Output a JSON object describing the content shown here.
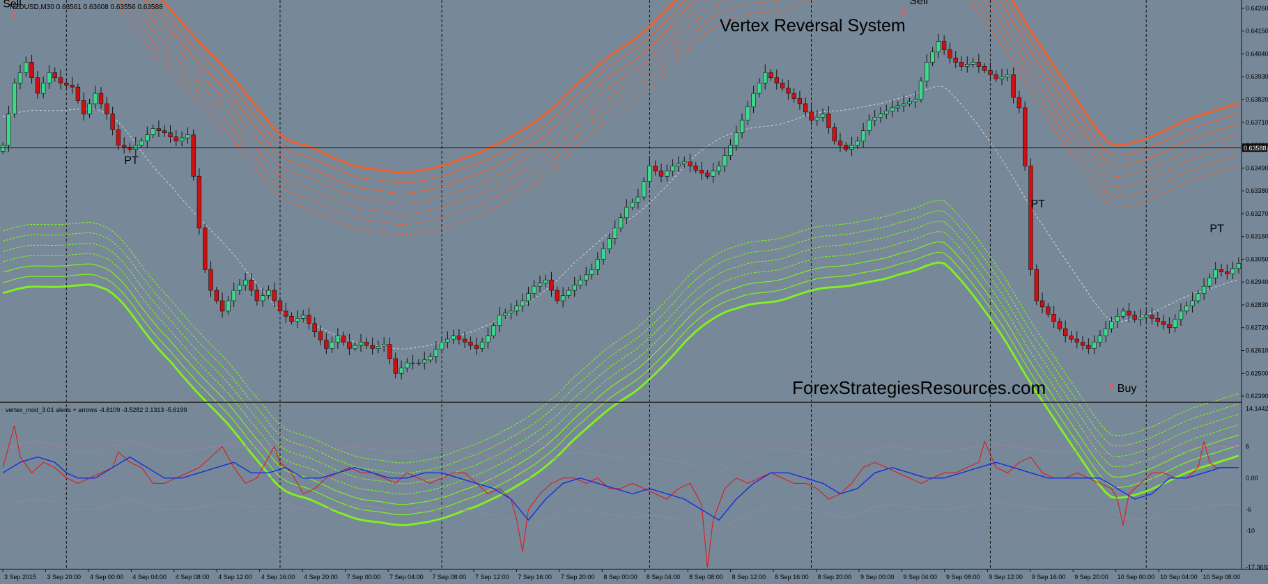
{
  "window": {
    "symbol_header": "NZDUSD,M30  0.63561 0.63608 0.63556 0.63588",
    "indicator_header": "vertex_mod_3.01 alerts + arrows -4.8109 -3.5282 2.1313 -5.6199"
  },
  "colors": {
    "background": "#778899",
    "bull_candle": "#3CD98A",
    "bear_candle": "#D01010",
    "upper_band": "#F0602A",
    "lower_band": "#80F020",
    "signal_red": "#E81010",
    "signal_blue": "#1030E0",
    "arrow": "#FF5050"
  },
  "chart_data": [
    {
      "type": "candlestick",
      "title": "Vertex Reversal System",
      "watermark": "ForexStrategiesResources.com",
      "price_axis_labels": [
        "0.64260",
        "0.64150",
        "0.64040",
        "0.63930",
        "0.63820",
        "0.63710",
        "0.63600",
        "0.63490",
        "0.63380",
        "0.63270",
        "0.63160",
        "0.63050",
        "0.62940",
        "0.62830",
        "0.62720",
        "0.62610",
        "0.62500",
        "0.62390"
      ],
      "current_price": "0.63588",
      "ylim": [
        0.6236,
        0.643
      ],
      "time_labels": [
        "3 Sep 2015",
        "3 Sep 20:00",
        "4 Sep 00:00",
        "4 Sep 04:00",
        "4 Sep 08:00",
        "4 Sep 12:00",
        "4 Sep 16:00",
        "4 Sep 20:00",
        "7 Sep 00:00",
        "7 Sep 04:00",
        "7 Sep 08:00",
        "7 Sep 12:00",
        "7 Sep 16:00",
        "7 Sep 20:00",
        "8 Sep 00:00",
        "8 Sep 04:00",
        "8 Sep 08:00",
        "8 Sep 12:00",
        "8 Sep 16:00",
        "8 Sep 20:00",
        "9 Sep 00:00",
        "9 Sep 04:00",
        "9 Sep 08:00",
        "9 Sep 12:00",
        "9 Sep 16:00",
        "9 Sep 20:00",
        "10 Sep 00:00",
        "10 Sep 04:00",
        "10 Sep 08:00"
      ],
      "close_path": [
        [
          0,
          0.636
        ],
        [
          2,
          0.639
        ],
        [
          4,
          0.64
        ],
        [
          6,
          0.6385
        ],
        [
          8,
          0.6395
        ],
        [
          10,
          0.639
        ],
        [
          12,
          0.6388
        ],
        [
          14,
          0.6375
        ],
        [
          16,
          0.6385
        ],
        [
          18,
          0.6375
        ],
        [
          20,
          0.636
        ],
        [
          22,
          0.6358
        ],
        [
          24,
          0.6362
        ],
        [
          26,
          0.6368
        ],
        [
          28,
          0.6366
        ],
        [
          30,
          0.6362
        ],
        [
          32,
          0.6365
        ],
        [
          33,
          0.6345
        ],
        [
          34,
          0.632
        ],
        [
          35,
          0.63
        ],
        [
          36,
          0.629
        ],
        [
          38,
          0.628
        ],
        [
          40,
          0.629
        ],
        [
          42,
          0.6295
        ],
        [
          44,
          0.6285
        ],
        [
          46,
          0.629
        ],
        [
          48,
          0.628
        ],
        [
          50,
          0.6275
        ],
        [
          52,
          0.6278
        ],
        [
          54,
          0.627
        ],
        [
          56,
          0.6262
        ],
        [
          58,
          0.6268
        ],
        [
          60,
          0.6262
        ],
        [
          62,
          0.6265
        ],
        [
          64,
          0.6262
        ],
        [
          66,
          0.6264
        ],
        [
          68,
          0.625
        ],
        [
          70,
          0.6255
        ],
        [
          72,
          0.6255
        ],
        [
          74,
          0.6258
        ],
        [
          76,
          0.6265
        ],
        [
          78,
          0.6268
        ],
        [
          80,
          0.6265
        ],
        [
          82,
          0.6262
        ],
        [
          84,
          0.6268
        ],
        [
          86,
          0.6278
        ],
        [
          88,
          0.628
        ],
        [
          90,
          0.6285
        ],
        [
          92,
          0.6292
        ],
        [
          94,
          0.6295
        ],
        [
          96,
          0.6285
        ],
        [
          98,
          0.629
        ],
        [
          100,
          0.6295
        ],
        [
          102,
          0.63
        ],
        [
          104,
          0.631
        ],
        [
          106,
          0.632
        ],
        [
          108,
          0.633
        ],
        [
          110,
          0.6335
        ],
        [
          112,
          0.635
        ],
        [
          114,
          0.6345
        ],
        [
          116,
          0.635
        ],
        [
          118,
          0.6352
        ],
        [
          120,
          0.6348
        ],
        [
          122,
          0.6345
        ],
        [
          124,
          0.635
        ],
        [
          126,
          0.636
        ],
        [
          128,
          0.6372
        ],
        [
          130,
          0.6385
        ],
        [
          132,
          0.6395
        ],
        [
          134,
          0.639
        ],
        [
          136,
          0.6385
        ],
        [
          138,
          0.638
        ],
        [
          140,
          0.6372
        ],
        [
          142,
          0.6375
        ],
        [
          144,
          0.6362
        ],
        [
          146,
          0.6358
        ],
        [
          148,
          0.6362
        ],
        [
          150,
          0.6372
        ],
        [
          152,
          0.6375
        ],
        [
          154,
          0.6378
        ],
        [
          156,
          0.638
        ],
        [
          158,
          0.6382
        ],
        [
          160,
          0.64
        ],
        [
          162,
          0.641
        ],
        [
          164,
          0.6402
        ],
        [
          166,
          0.6398
        ],
        [
          168,
          0.64
        ],
        [
          170,
          0.6396
        ],
        [
          172,
          0.6392
        ],
        [
          174,
          0.6394
        ],
        [
          175,
          0.6383
        ],
        [
          176,
          0.6378
        ],
        [
          177,
          0.635
        ],
        [
          178,
          0.63
        ],
        [
          179,
          0.6285
        ],
        [
          180,
          0.6282
        ],
        [
          182,
          0.6275
        ],
        [
          184,
          0.6268
        ],
        [
          186,
          0.6265
        ],
        [
          188,
          0.6262
        ],
        [
          190,
          0.6268
        ],
        [
          192,
          0.6275
        ],
        [
          194,
          0.628
        ],
        [
          196,
          0.6276
        ],
        [
          198,
          0.6278
        ],
        [
          200,
          0.6275
        ],
        [
          202,
          0.6272
        ],
        [
          204,
          0.628
        ],
        [
          206,
          0.6285
        ],
        [
          208,
          0.6292
        ],
        [
          210,
          0.63
        ],
        [
          212,
          0.6298
        ],
        [
          214,
          0.6303
        ]
      ],
      "labels": [
        {
          "text": "Sell",
          "index": 0,
          "price": 0.64265
        },
        {
          "text": "PT",
          "index": 21,
          "price": 0.6351
        },
        {
          "text": "Sell",
          "index": 157,
          "price": 0.6428
        },
        {
          "text": "PT",
          "index": 178,
          "price": 0.633
        },
        {
          "text": "PT",
          "index": 209,
          "price": 0.6318
        },
        {
          "text": "Buy",
          "index": 193,
          "price": 0.6241
        }
      ]
    },
    {
      "type": "line",
      "yaxis_labels": [
        "14.1442",
        "6",
        "0.00",
        "-6",
        "-10",
        "-17.3693"
      ],
      "ylim": [
        -17.3693,
        14.1442
      ],
      "red_series": [
        [
          0,
          2
        ],
        [
          2,
          10
        ],
        [
          3,
          4
        ],
        [
          5,
          1
        ],
        [
          7,
          3
        ],
        [
          9,
          2
        ],
        [
          11,
          0
        ],
        [
          13,
          -1
        ],
        [
          15,
          0
        ],
        [
          17,
          1
        ],
        [
          19,
          2
        ],
        [
          20,
          5
        ],
        [
          22,
          3
        ],
        [
          24,
          2
        ],
        [
          26,
          -1
        ],
        [
          28,
          -1
        ],
        [
          30,
          0
        ],
        [
          32,
          1
        ],
        [
          34,
          2
        ],
        [
          36,
          4
        ],
        [
          38,
          6
        ],
        [
          40,
          2
        ],
        [
          42,
          -1
        ],
        [
          44,
          0
        ],
        [
          46,
          4
        ],
        [
          47,
          6
        ],
        [
          48,
          3
        ],
        [
          50,
          1
        ],
        [
          52,
          -3
        ],
        [
          54,
          -2
        ],
        [
          56,
          0
        ],
        [
          58,
          1
        ],
        [
          60,
          2
        ],
        [
          62,
          1
        ],
        [
          64,
          1
        ],
        [
          66,
          0
        ],
        [
          68,
          -1
        ],
        [
          70,
          1
        ],
        [
          72,
          0
        ],
        [
          74,
          -1
        ],
        [
          76,
          0
        ],
        [
          78,
          1
        ],
        [
          80,
          1
        ],
        [
          82,
          -1
        ],
        [
          84,
          -3
        ],
        [
          86,
          -2
        ],
        [
          88,
          -4
        ],
        [
          89,
          -8
        ],
        [
          90,
          -14
        ],
        [
          91,
          -6
        ],
        [
          93,
          -3
        ],
        [
          95,
          -1
        ],
        [
          97,
          0
        ],
        [
          99,
          0
        ],
        [
          101,
          -1
        ],
        [
          103,
          0
        ],
        [
          105,
          -2
        ],
        [
          107,
          -2
        ],
        [
          109,
          -1
        ],
        [
          111,
          -2
        ],
        [
          113,
          -3
        ],
        [
          115,
          -4
        ],
        [
          117,
          -2
        ],
        [
          119,
          -1
        ],
        [
          121,
          -5
        ],
        [
          122,
          -17
        ],
        [
          123,
          -8
        ],
        [
          125,
          -2
        ],
        [
          127,
          0
        ],
        [
          129,
          -1
        ],
        [
          131,
          0
        ],
        [
          133,
          1
        ],
        [
          135,
          0
        ],
        [
          137,
          -1
        ],
        [
          139,
          -1
        ],
        [
          141,
          -2
        ],
        [
          143,
          -4
        ],
        [
          145,
          -3
        ],
        [
          147,
          -1
        ],
        [
          149,
          2
        ],
        [
          151,
          3
        ],
        [
          153,
          2
        ],
        [
          155,
          1
        ],
        [
          157,
          0
        ],
        [
          159,
          -1
        ],
        [
          161,
          0
        ],
        [
          163,
          1
        ],
        [
          165,
          1
        ],
        [
          167,
          2
        ],
        [
          169,
          3
        ],
        [
          170,
          7
        ],
        [
          172,
          2
        ],
        [
          174,
          1
        ],
        [
          176,
          3
        ],
        [
          178,
          4
        ],
        [
          180,
          1
        ],
        [
          182,
          0
        ],
        [
          184,
          0
        ],
        [
          186,
          1
        ],
        [
          188,
          0
        ],
        [
          190,
          -1
        ],
        [
          192,
          -2
        ],
        [
          193,
          -4
        ],
        [
          194,
          -9
        ],
        [
          195,
          -3
        ],
        [
          197,
          -1
        ],
        [
          199,
          1
        ],
        [
          201,
          1
        ],
        [
          203,
          0
        ],
        [
          205,
          0
        ],
        [
          207,
          2
        ],
        [
          208,
          7
        ],
        [
          209,
          3
        ],
        [
          210,
          2
        ],
        [
          212,
          2
        ],
        [
          214,
          2
        ]
      ],
      "blue_series": [
        [
          0,
          1
        ],
        [
          3,
          3
        ],
        [
          6,
          4
        ],
        [
          9,
          3
        ],
        [
          11,
          1
        ],
        [
          13,
          0
        ],
        [
          16,
          0
        ],
        [
          19,
          2
        ],
        [
          22,
          4
        ],
        [
          25,
          2
        ],
        [
          28,
          0
        ],
        [
          31,
          0
        ],
        [
          34,
          1
        ],
        [
          37,
          2
        ],
        [
          40,
          3
        ],
        [
          43,
          1
        ],
        [
          46,
          1
        ],
        [
          49,
          2
        ],
        [
          52,
          0
        ],
        [
          55,
          0
        ],
        [
          58,
          1
        ],
        [
          61,
          2
        ],
        [
          64,
          1
        ],
        [
          67,
          0
        ],
        [
          70,
          0
        ],
        [
          73,
          1
        ],
        [
          76,
          1
        ],
        [
          79,
          0
        ],
        [
          82,
          -1
        ],
        [
          85,
          -2
        ],
        [
          88,
          -4
        ],
        [
          91,
          -8
        ],
        [
          94,
          -4
        ],
        [
          97,
          -1
        ],
        [
          100,
          0
        ],
        [
          103,
          -1
        ],
        [
          106,
          -2
        ],
        [
          109,
          -3
        ],
        [
          112,
          -2
        ],
        [
          115,
          -3
        ],
        [
          118,
          -4
        ],
        [
          121,
          -6
        ],
        [
          124,
          -8
        ],
        [
          127,
          -4
        ],
        [
          130,
          -1
        ],
        [
          133,
          1
        ],
        [
          136,
          1
        ],
        [
          139,
          0
        ],
        [
          142,
          -1
        ],
        [
          145,
          -3
        ],
        [
          148,
          -2
        ],
        [
          151,
          1
        ],
        [
          154,
          2
        ],
        [
          157,
          1
        ],
        [
          160,
          0
        ],
        [
          163,
          0
        ],
        [
          166,
          1
        ],
        [
          169,
          2
        ],
        [
          172,
          3
        ],
        [
          175,
          2
        ],
        [
          178,
          1
        ],
        [
          181,
          0
        ],
        [
          184,
          0
        ],
        [
          187,
          0
        ],
        [
          190,
          0
        ],
        [
          193,
          -2
        ],
        [
          196,
          -4
        ],
        [
          199,
          -3
        ],
        [
          202,
          0
        ],
        [
          205,
          0
        ],
        [
          208,
          1
        ],
        [
          211,
          2
        ],
        [
          214,
          2
        ]
      ]
    }
  ]
}
